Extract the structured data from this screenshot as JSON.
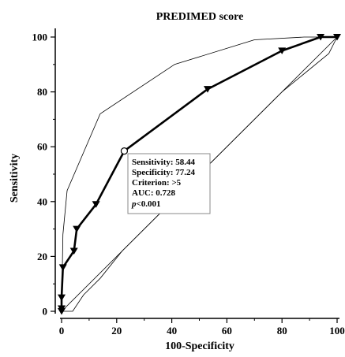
{
  "chart_data": {
    "type": "line",
    "title": "PREDIMED score",
    "xlabel": "100-Specificity",
    "ylabel": "Sensitivity",
    "xlim": [
      0,
      100
    ],
    "ylim": [
      0,
      100
    ],
    "xticks": [
      "0",
      "20",
      "40",
      "60",
      "80",
      "100"
    ],
    "yticks": [
      "0",
      "20",
      "40",
      "60",
      "80",
      "100"
    ],
    "grid": false,
    "series": [
      {
        "role": "roc",
        "x": [
          0,
          0,
          0,
          0.5,
          4.5,
          5.5,
          12.5,
          22.76,
          53,
          80,
          94,
          100
        ],
        "y": [
          0,
          1,
          5,
          16,
          22,
          30,
          39,
          58.44,
          81,
          95,
          100,
          100
        ]
      },
      {
        "role": "ci-upper",
        "x": [
          0,
          0.5,
          2,
          14,
          41,
          70,
          88,
          100
        ],
        "y": [
          0,
          28,
          44,
          72,
          90,
          99,
          100,
          100
        ]
      },
      {
        "role": "ci-lower",
        "x": [
          0,
          4,
          8,
          14,
          22,
          30,
          50,
          80,
          97,
          100
        ],
        "y": [
          0,
          0,
          6,
          12,
          22,
          30,
          50,
          80,
          94,
          100
        ]
      },
      {
        "role": "diagonal",
        "x": [
          0,
          100
        ],
        "y": [
          0,
          100
        ]
      }
    ],
    "criterion_point": {
      "x": 22.76,
      "y": 58.44
    },
    "annotation": {
      "sensitivity": "Sensitivity: 58.44",
      "specificity": "Specificity: 77.24",
      "criterion": "Criterion: >5",
      "auc": "AUC: 0.728",
      "p_prefix": "p",
      "p_value": "<0.001"
    }
  }
}
